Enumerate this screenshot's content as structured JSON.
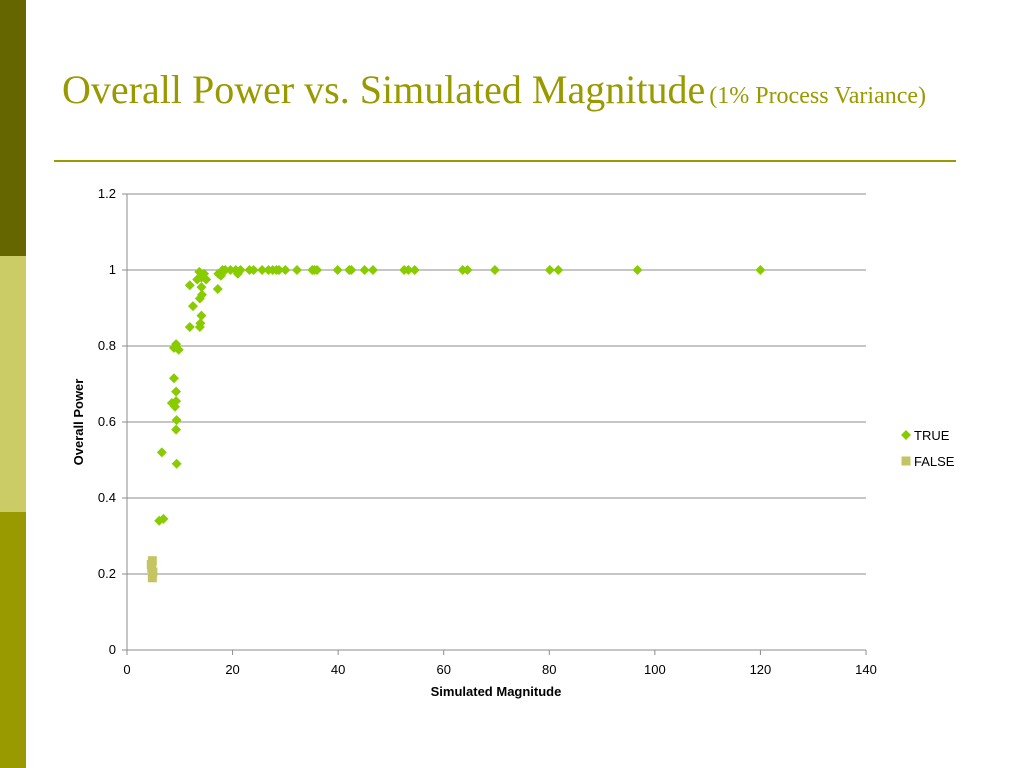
{
  "slide": {
    "title_main": "Overall Power vs. Simulated Magnitude",
    "title_sub": "(1% Process Variance)",
    "accent_color": "#999900",
    "sidebar_colors": [
      "#666600",
      "#CCCC66",
      "#999900"
    ]
  },
  "chart_data": {
    "type": "scatter",
    "title": "",
    "xlabel": "Simulated Magnitude",
    "ylabel": "Overall Power",
    "xlim": [
      0,
      140
    ],
    "ylim": [
      0,
      1.2
    ],
    "xticks": [
      0,
      20,
      40,
      60,
      80,
      100,
      120,
      140
    ],
    "yticks": [
      0,
      0.2,
      0.4,
      0.6,
      0.8,
      1,
      1.2
    ],
    "grid": "horizontal",
    "legend_position": "right",
    "series": [
      {
        "name": "TRUE",
        "marker": "diamond",
        "color": "#88CC00",
        "points": [
          [
            6.1,
            0.34
          ],
          [
            6.9,
            0.345
          ],
          [
            6.6,
            0.52
          ],
          [
            8.5,
            0.65
          ],
          [
            8.9,
            0.715
          ],
          [
            9.3,
            0.68
          ],
          [
            9.3,
            0.655
          ],
          [
            9.1,
            0.64
          ],
          [
            9.4,
            0.605
          ],
          [
            9.3,
            0.58
          ],
          [
            9.4,
            0.49
          ],
          [
            8.9,
            0.795
          ],
          [
            9.3,
            0.805
          ],
          [
            9.8,
            0.79
          ],
          [
            11.9,
            0.85
          ],
          [
            12.5,
            0.905
          ],
          [
            11.9,
            0.96
          ],
          [
            13.8,
            0.85
          ],
          [
            13.9,
            0.86
          ],
          [
            14.1,
            0.88
          ],
          [
            13.8,
            0.925
          ],
          [
            14.2,
            0.935
          ],
          [
            14.1,
            0.955
          ],
          [
            13.3,
            0.975
          ],
          [
            13.7,
            0.995
          ],
          [
            14.1,
            0.98
          ],
          [
            14.6,
            0.99
          ],
          [
            15.0,
            0.975
          ],
          [
            17.2,
            0.95
          ],
          [
            17.3,
            0.99
          ],
          [
            17.8,
            0.985
          ],
          [
            18.1,
            1.0
          ],
          [
            18.6,
            1.0
          ],
          [
            19.6,
            1.0
          ],
          [
            20.6,
            1.0
          ],
          [
            21.0,
            0.99
          ],
          [
            21.5,
            1.0
          ],
          [
            23.2,
            1.0
          ],
          [
            24.0,
            1.0
          ],
          [
            25.6,
            1.0
          ],
          [
            26.8,
            1.0
          ],
          [
            27.6,
            1.0
          ],
          [
            28.3,
            1.0
          ],
          [
            28.8,
            1.0
          ],
          [
            30.0,
            1.0
          ],
          [
            32.2,
            1.0
          ],
          [
            35.1,
            1.0
          ],
          [
            35.5,
            1.0
          ],
          [
            36.0,
            1.0
          ],
          [
            39.9,
            1.0
          ],
          [
            42.1,
            1.0
          ],
          [
            42.5,
            1.0
          ],
          [
            45.0,
            1.0
          ],
          [
            46.6,
            1.0
          ],
          [
            52.5,
            1.0
          ],
          [
            53.3,
            1.0
          ],
          [
            54.5,
            1.0
          ],
          [
            63.6,
            1.0
          ],
          [
            64.5,
            1.0
          ],
          [
            69.7,
            1.0
          ],
          [
            80.1,
            1.0
          ],
          [
            81.7,
            1.0
          ],
          [
            96.7,
            1.0
          ],
          [
            120.0,
            1.0
          ]
        ]
      },
      {
        "name": "FALSE",
        "marker": "square",
        "color": "#C4C463",
        "points": [
          [
            4.8,
            0.235
          ],
          [
            4.6,
            0.225
          ],
          [
            4.7,
            0.215
          ],
          [
            4.9,
            0.205
          ],
          [
            4.8,
            0.19
          ]
        ]
      }
    ]
  }
}
